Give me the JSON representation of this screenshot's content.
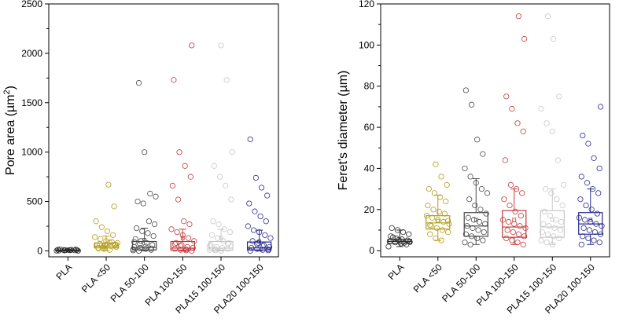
{
  "chart_data": [
    {
      "type": "box",
      "ylabel": "Pore area (µm²)",
      "ylabel_main": "Pore area (µm",
      "ylabel_sup": "2",
      "ylabel_end": ")",
      "ylim": [
        -60,
        2500
      ],
      "yticks": [
        0,
        500,
        1000,
        1500,
        2000,
        2500
      ],
      "ytick_labels": [
        "0",
        "500",
        "1000",
        "1500",
        "2000",
        "2500"
      ],
      "categories": [
        "PLA",
        "PLA <50",
        "PLA 50-100",
        "PLA 100-150",
        "PLA15 100-150",
        "PLA20 100-150"
      ],
      "colors": [
        "#2b2b2b",
        "#b39c1a",
        "#4a4a4a",
        "#c43a3a",
        "#c8c8c8",
        "#2a2a8c"
      ],
      "boxes": [
        {
          "q1": 2,
          "median": 5,
          "q3": 9,
          "whisker_low": 0,
          "whisker_high": 15,
          "mean": 6
        },
        {
          "q1": 30,
          "median": 50,
          "q3": 80,
          "whisker_low": 5,
          "whisker_high": 150,
          "mean": 60
        },
        {
          "q1": 10,
          "median": 35,
          "q3": 95,
          "whisker_low": 0,
          "whisker_high": 230,
          "mean": 110
        },
        {
          "q1": 8,
          "median": 28,
          "q3": 95,
          "whisker_low": 0,
          "whisker_high": 220,
          "mean": 130
        },
        {
          "q1": 8,
          "median": 28,
          "q3": 95,
          "whisker_low": 0,
          "whisker_high": 220,
          "mean": 130
        },
        {
          "q1": 10,
          "median": 30,
          "q3": 90,
          "whisker_low": 0,
          "whisker_high": 210,
          "mean": 95
        }
      ],
      "points": [
        [
          2,
          5,
          8,
          10,
          12,
          14,
          6,
          4,
          3,
          9,
          11,
          7,
          15,
          1
        ],
        [
          10,
          20,
          30,
          40,
          50,
          60,
          70,
          80,
          90,
          100,
          120,
          140,
          160,
          200,
          240,
          300,
          450,
          670,
          35,
          55,
          65,
          85,
          45,
          25
        ],
        [
          0,
          5,
          10,
          20,
          30,
          40,
          60,
          80,
          100,
          120,
          150,
          180,
          200,
          230,
          270,
          300,
          480,
          500,
          550,
          580,
          1000,
          1700,
          15,
          25,
          45,
          70,
          90
        ],
        [
          0,
          5,
          10,
          20,
          30,
          40,
          60,
          80,
          100,
          130,
          160,
          190,
          220,
          270,
          300,
          520,
          660,
          750,
          860,
          1000,
          1730,
          2080,
          15,
          50,
          70
        ],
        [
          0,
          5,
          10,
          20,
          30,
          40,
          60,
          80,
          100,
          130,
          160,
          190,
          220,
          270,
          300,
          520,
          660,
          750,
          860,
          1000,
          1730,
          2080,
          15,
          50,
          70
        ],
        [
          0,
          5,
          10,
          20,
          30,
          40,
          60,
          80,
          100,
          130,
          160,
          190,
          210,
          250,
          300,
          350,
          400,
          480,
          560,
          640,
          740,
          1130,
          15,
          50,
          70
        ]
      ]
    },
    {
      "type": "box",
      "ylabel": "Feret's diameter (µm)",
      "ylim": [
        -3,
        120
      ],
      "yticks": [
        0,
        20,
        40,
        60,
        80,
        100,
        120
      ],
      "ytick_labels": [
        "0",
        "20",
        "40",
        "60",
        "80",
        "100",
        "120"
      ],
      "categories": [
        "PLA",
        "PLA <50",
        "PLA 50-100",
        "PLA 100-150",
        "PLA15 100-150",
        "PLA20 100-150"
      ],
      "colors": [
        "#2b2b2b",
        "#b39c1a",
        "#4a4a4a",
        "#c43a3a",
        "#c8c8c8",
        "#2a2a8c"
      ],
      "boxes": [
        {
          "q1": 3.5,
          "median": 4.5,
          "q3": 5.5,
          "whisker_low": 2,
          "whisker_high": 10,
          "mean": 5
        },
        {
          "q1": 10.5,
          "median": 13.5,
          "q3": 17,
          "whisker_low": 5,
          "whisker_high": 27,
          "mean": 14.5
        },
        {
          "q1": 7,
          "median": 12,
          "q3": 18.5,
          "whisker_low": 3,
          "whisker_high": 35,
          "mean": 15
        },
        {
          "q1": 6.5,
          "median": 11.5,
          "q3": 19.5,
          "whisker_low": 3,
          "whisker_high": 30,
          "mean": 15
        },
        {
          "q1": 6.5,
          "median": 11.5,
          "q3": 19.5,
          "whisker_low": 3,
          "whisker_high": 30,
          "mean": 15
        },
        {
          "q1": 8,
          "median": 13,
          "q3": 18.5,
          "whisker_low": 3,
          "whisker_high": 30,
          "mean": 15
        }
      ],
      "points": [
        [
          2,
          3,
          3.5,
          4,
          4.5,
          5,
          5.5,
          6,
          7,
          8,
          9,
          10,
          11,
          4.2,
          3.8,
          5.2,
          6.5
        ],
        [
          5,
          6,
          8,
          9,
          10,
          11,
          12,
          13,
          14,
          15,
          16,
          17,
          18,
          19,
          20,
          22,
          24,
          26,
          28,
          30,
          32,
          36,
          42,
          12.5,
          14.5
        ],
        [
          3,
          4,
          5,
          6,
          7,
          8,
          9,
          10,
          11,
          12,
          13,
          14,
          15,
          16,
          18,
          20,
          22,
          25,
          28,
          30,
          33,
          36,
          40,
          47,
          54,
          71,
          78
        ],
        [
          3,
          4,
          5,
          6,
          7,
          8,
          9,
          10,
          11,
          12,
          13,
          14,
          15,
          17,
          19,
          22,
          25,
          28,
          30,
          32,
          44,
          58,
          62,
          69,
          75,
          103,
          114
        ],
        [
          3,
          4,
          5,
          6,
          7,
          8,
          9,
          10,
          11,
          12,
          13,
          14,
          15,
          17,
          19,
          22,
          25,
          28,
          30,
          32,
          44,
          58,
          62,
          69,
          75,
          103,
          114
        ],
        [
          3,
          4,
          5,
          6,
          7,
          8,
          9,
          10,
          11,
          12,
          13,
          14,
          15,
          16,
          18,
          20,
          22,
          25,
          28,
          30,
          33,
          36,
          40,
          45,
          52,
          56,
          70
        ]
      ]
    }
  ]
}
